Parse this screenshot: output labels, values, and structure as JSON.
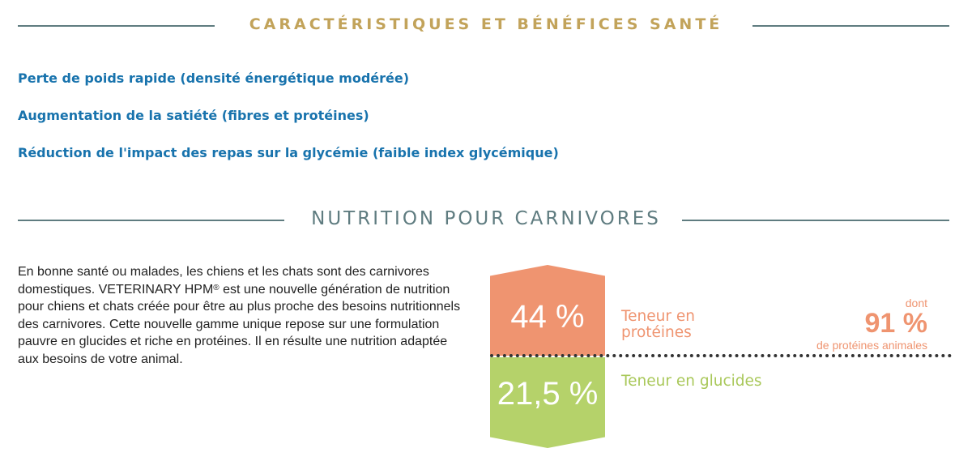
{
  "section1": {
    "title": "CARACTÉRISTIQUES ET BÉNÉFICES SANTÉ",
    "benefits": [
      "Perte de poids rapide (densité énergétique modérée)",
      "Augmentation de la satiété (fibres et protéines)",
      "Réduction de l'impact des repas sur la glycémie (faible index glycémique)"
    ]
  },
  "section2": {
    "title": "NUTRITION POUR CARNIVORES",
    "paragraph": {
      "part1": "En bonne santé ou malades, les chiens et les chats sont des carnivores domestiques. VETERINARY HPM",
      "registered": "®",
      "part2": " est une nouvelle génération de nutrition pour chiens et chats créée pour être au plus proche des besoins nutritionnels des carnivores. Cette nouvelle gamme unique repose sur une formulation pauvre en glucides et riche en protéines. Il en résulte une nutrition adaptée aux besoins de votre animal."
    },
    "protein": {
      "percent": "44 %",
      "label": "Teneur en protéines",
      "dont": "dont",
      "animal_percent": "91 %",
      "animal_label": "de protéines animales",
      "color": "#ef9470"
    },
    "carbs": {
      "percent": "21,5 %",
      "label": "Teneur en glucides",
      "color": "#b5d26a"
    }
  },
  "colors": {
    "gold": "#c2a35a",
    "slate": "#5f7c80",
    "blue": "#1873ad"
  }
}
